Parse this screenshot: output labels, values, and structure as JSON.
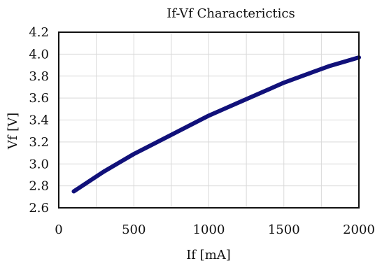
{
  "chart_data": {
    "type": "line",
    "title": "If-Vf Characterictics",
    "xlabel": "If [mA]",
    "ylabel": "Vf [V]",
    "xlim": [
      0,
      2000
    ],
    "ylim": [
      2.6,
      4.2
    ],
    "x_ticks": [
      0,
      500,
      1000,
      1500,
      2000
    ],
    "y_ticks": [
      2.6,
      2.8,
      3.0,
      3.2,
      3.4,
      3.6,
      3.8,
      4.0,
      4.2
    ],
    "x_tick_labels": [
      "0",
      "500",
      "1000",
      "1500",
      "2000"
    ],
    "y_tick_labels": [
      "2.6",
      "2.8",
      "3.0",
      "3.2",
      "3.4",
      "3.6",
      "3.8",
      "4.0",
      "4.2"
    ],
    "grid": true,
    "series": [
      {
        "color": "#11117a",
        "points": [
          [
            100,
            2.75
          ],
          [
            200,
            2.84
          ],
          [
            300,
            2.93
          ],
          [
            400,
            3.01
          ],
          [
            500,
            3.09
          ],
          [
            600,
            3.16
          ],
          [
            700,
            3.23
          ],
          [
            800,
            3.3
          ],
          [
            900,
            3.37
          ],
          [
            1000,
            3.44
          ],
          [
            1100,
            3.5
          ],
          [
            1200,
            3.56
          ],
          [
            1300,
            3.62
          ],
          [
            1400,
            3.68
          ],
          [
            1500,
            3.74
          ],
          [
            1600,
            3.79
          ],
          [
            1700,
            3.84
          ],
          [
            1800,
            3.89
          ],
          [
            1900,
            3.93
          ],
          [
            2000,
            3.97
          ]
        ]
      }
    ]
  }
}
